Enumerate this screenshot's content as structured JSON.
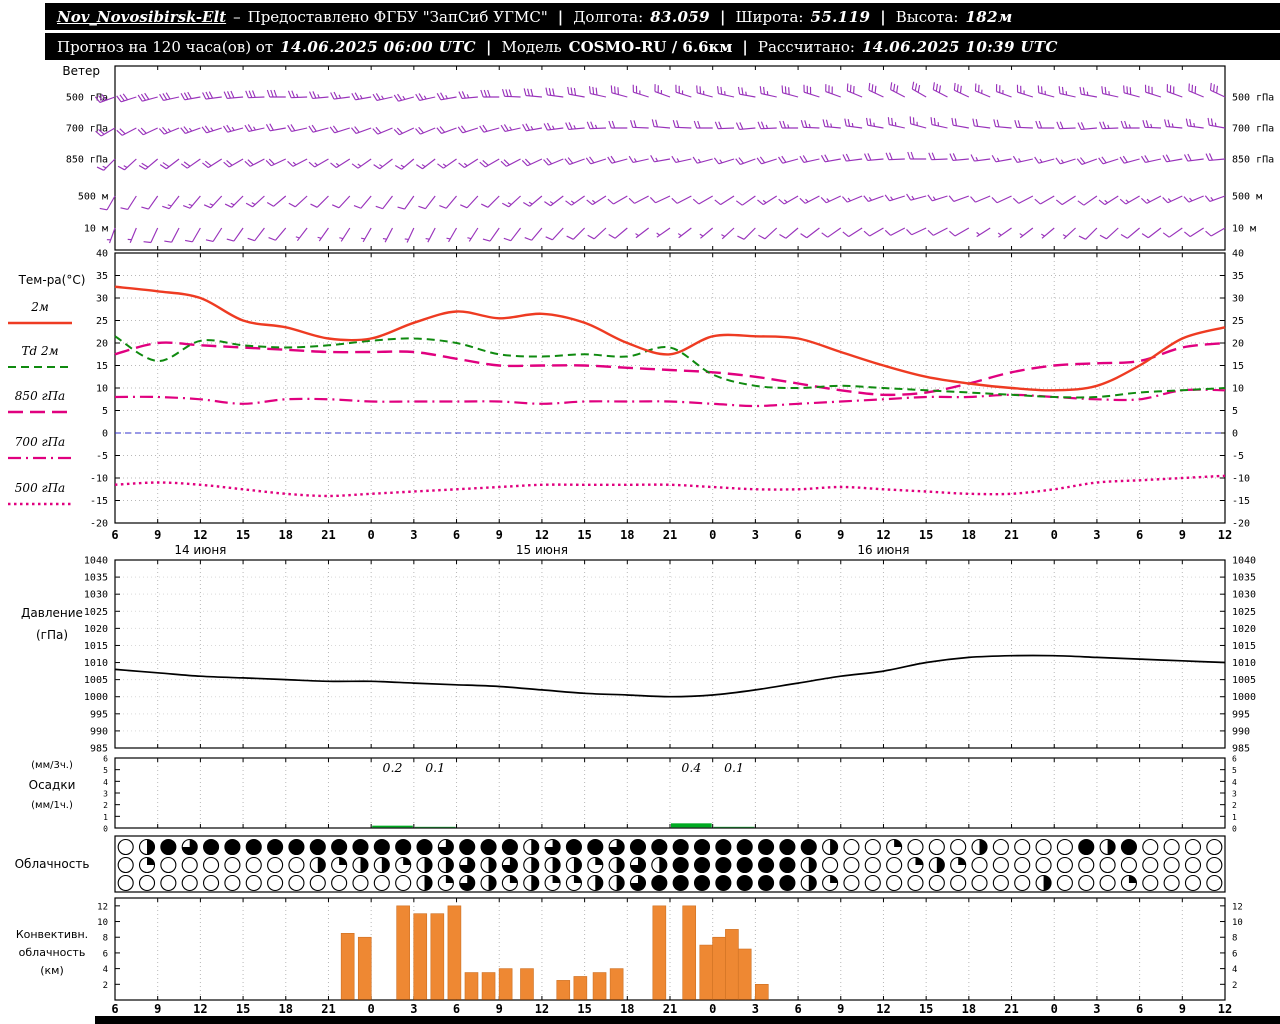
{
  "header": {
    "sep": "|",
    "dash": "–",
    "station": "Nov_Novosibirsk-Elt",
    "provider": "Предоставлено ФГБУ \"ЗапСиб УГМС\"",
    "lon_label": "Долгота:",
    "lon_value": "83.059",
    "lat_label": "Широта:",
    "lat_value": "55.119",
    "alt_label": "Высота:",
    "alt_value": "182м",
    "forecast_label": "Прогноз на 120 часа(ов) от",
    "forecast_time": "14.06.2025 06:00 UTC",
    "model_label": "Модель",
    "model_value": "COSMO-RU / 6.6км",
    "calc_label": "Рассчитано:",
    "calc_value": "14.06.2025 10:39 UTC"
  },
  "chart_data": {
    "type": "meteogram",
    "grid_color": "#b8b8b8",
    "frame_color": "#000000",
    "x": {
      "hour_labels": [
        "6",
        "9",
        "12",
        "15",
        "18",
        "21",
        "0",
        "3",
        "6",
        "9",
        "12",
        "15",
        "18",
        "21",
        "0",
        "3",
        "6",
        "9",
        "12",
        "15",
        "18",
        "21",
        "0",
        "3",
        "6",
        "9",
        "12"
      ],
      "date_labels": [
        {
          "label": "14 июня",
          "tick": 2
        },
        {
          "label": "15 июня",
          "tick": 10
        },
        {
          "label": "16 июня",
          "tick": 18
        }
      ]
    },
    "wind": {
      "panel_label": "Ветер",
      "color": "#9933bb",
      "levels": [
        {
          "label": "500 гПа",
          "dirs": [
            250,
            255,
            260,
            265,
            270,
            265,
            260,
            255,
            260,
            270,
            275,
            280,
            285,
            290,
            285,
            280,
            285,
            290,
            295,
            300,
            295,
            290,
            285,
            280,
            285,
            290,
            295
          ],
          "speeds": [
            14,
            15,
            15,
            16,
            14,
            13,
            12,
            12,
            13,
            14,
            15,
            15,
            14,
            13,
            12,
            13,
            14,
            15,
            16,
            15,
            14,
            13,
            12,
            13,
            14,
            15,
            16
          ]
        },
        {
          "label": "700 гПа",
          "dirs": [
            240,
            245,
            250,
            255,
            260,
            255,
            250,
            245,
            250,
            255,
            260,
            265,
            270,
            275,
            270,
            265,
            270,
            275,
            280,
            285,
            280,
            275,
            270,
            265,
            270,
            275,
            280
          ],
          "speeds": [
            10,
            11,
            12,
            12,
            11,
            10,
            9,
            9,
            10,
            11,
            12,
            12,
            11,
            10,
            10,
            11,
            12,
            12,
            13,
            12,
            11,
            10,
            10,
            11,
            12,
            12,
            13
          ]
        },
        {
          "label": "850 гПа",
          "dirs": [
            225,
            230,
            235,
            240,
            245,
            240,
            235,
            230,
            235,
            240,
            245,
            250,
            255,
            260,
            255,
            250,
            255,
            260,
            265,
            270,
            265,
            260,
            255,
            250,
            255,
            260,
            265
          ],
          "speeds": [
            8,
            9,
            10,
            10,
            9,
            8,
            7,
            7,
            8,
            9,
            10,
            10,
            9,
            8,
            8,
            9,
            10,
            10,
            11,
            10,
            9,
            8,
            8,
            9,
            10,
            10,
            11
          ]
        },
        {
          "label": "500 м",
          "dirs": [
            210,
            215,
            220,
            225,
            230,
            225,
            220,
            215,
            220,
            225,
            230,
            235,
            240,
            245,
            240,
            235,
            240,
            245,
            250,
            255,
            250,
            245,
            240,
            235,
            240,
            245,
            250
          ],
          "speeds": [
            5,
            6,
            7,
            7,
            6,
            5,
            5,
            4,
            5,
            6,
            7,
            7,
            6,
            5,
            5,
            6,
            7,
            7,
            8,
            7,
            6,
            5,
            5,
            6,
            7,
            7,
            8
          ]
        },
        {
          "label": "10 м",
          "dirs": [
            200,
            205,
            210,
            215,
            220,
            215,
            210,
            205,
            210,
            215,
            220,
            225,
            230,
            235,
            230,
            225,
            230,
            235,
            240,
            245,
            240,
            235,
            230,
            225,
            230,
            235,
            240
          ],
          "speeds": [
            3,
            4,
            4,
            5,
            4,
            3,
            3,
            2,
            3,
            4,
            4,
            5,
            4,
            3,
            3,
            4,
            4,
            5,
            5,
            4,
            4,
            3,
            3,
            4,
            4,
            5,
            5
          ]
        }
      ]
    },
    "temperature": {
      "panel_label": "Тем-ра(°C)",
      "ylim": [
        -20,
        40
      ],
      "yticks": [
        -20,
        -15,
        -10,
        -5,
        0,
        5,
        10,
        15,
        20,
        25,
        30,
        35,
        40
      ],
      "zero_line_color": "#3333cc",
      "series": [
        {
          "name": "2м",
          "color": "#ee3b22",
          "dash": "solid",
          "width": 2.4,
          "values": [
            32.5,
            31.5,
            30.0,
            25.0,
            23.5,
            21.0,
            21.0,
            24.5,
            27.0,
            25.5,
            26.5,
            24.5,
            20.0,
            17.5,
            21.5,
            21.5,
            21.0,
            18.0,
            15.0,
            12.5,
            11.0,
            10.0,
            9.5,
            10.5,
            15.0,
            21.0,
            23.5
          ]
        },
        {
          "name": "Td 2м",
          "color": "#0f8a0f",
          "dash": "dashed",
          "width": 2.0,
          "values": [
            21.5,
            16.0,
            20.5,
            19.5,
            19.0,
            19.5,
            20.5,
            21.0,
            20.0,
            17.5,
            17.0,
            17.5,
            17.0,
            19.0,
            13.0,
            10.5,
            10.0,
            10.5,
            10.0,
            9.5,
            9.0,
            8.5,
            8.0,
            8.0,
            9.0,
            9.5,
            10.0
          ]
        },
        {
          "name": "850 гПа",
          "color": "#e0007f",
          "dash": "longdash",
          "width": 2.4,
          "values": [
            17.5,
            20.0,
            19.5,
            19.0,
            18.5,
            18.0,
            18.0,
            18.0,
            16.5,
            15.0,
            15.0,
            15.0,
            14.5,
            14.0,
            13.5,
            12.5,
            11.0,
            9.5,
            8.5,
            9.0,
            11.0,
            13.5,
            15.0,
            15.5,
            16.0,
            19.0,
            20.0
          ]
        },
        {
          "name": "700 гПа",
          "color": "#e0007f",
          "dash": "dashdot",
          "width": 2.2,
          "values": [
            8.0,
            8.0,
            7.5,
            6.5,
            7.5,
            7.5,
            7.0,
            7.0,
            7.0,
            7.0,
            6.5,
            7.0,
            7.0,
            7.0,
            6.5,
            6.0,
            6.5,
            7.0,
            7.5,
            8.0,
            8.0,
            8.5,
            8.0,
            7.5,
            7.5,
            9.5,
            9.5
          ]
        },
        {
          "name": "500 гПа",
          "color": "#e0007f",
          "dash": "dotted",
          "width": 2.4,
          "values": [
            -11.5,
            -11.0,
            -11.5,
            -12.5,
            -13.5,
            -14.0,
            -13.5,
            -13.0,
            -12.5,
            -12.0,
            -11.5,
            -11.5,
            -11.5,
            -11.5,
            -12.0,
            -12.5,
            -12.5,
            -12.0,
            -12.5,
            -13.0,
            -13.5,
            -13.5,
            -12.5,
            -11.0,
            -10.5,
            -10.0,
            -9.5
          ]
        }
      ]
    },
    "pressure": {
      "panel_label_1": "Давление",
      "panel_label_2": "(гПа)",
      "ylim": [
        985,
        1040
      ],
      "yticks": [
        985,
        990,
        995,
        1000,
        1005,
        1010,
        1015,
        1020,
        1025,
        1030,
        1035,
        1040
      ],
      "color": "#000000",
      "values": [
        1008,
        1007,
        1006,
        1005.5,
        1005,
        1004.5,
        1004.5,
        1004,
        1003.5,
        1003,
        1002,
        1001,
        1000.5,
        1000,
        1000.5,
        1002,
        1004,
        1006,
        1007.5,
        1010,
        1011.5,
        1012,
        1012,
        1011.5,
        1011,
        1010.5,
        1010
      ]
    },
    "precip": {
      "label_top": "(мм/3ч.)",
      "label_mid": "Осадки",
      "label_bot": "(мм/1ч.)",
      "ylim": [
        0,
        6
      ],
      "yticks": [
        0,
        1,
        2,
        3,
        4,
        5,
        6
      ],
      "color": "#00aa22",
      "bars": [
        {
          "tick": 6,
          "value": 0.2,
          "label": "0.2"
        },
        {
          "tick": 7,
          "value": 0.1,
          "label": "0.1"
        },
        {
          "tick": 13,
          "value": 0.4,
          "label": "0.4"
        },
        {
          "tick": 14,
          "value": 0.1,
          "label": "0.1"
        }
      ]
    },
    "cloud": {
      "panel_label": "Облачность",
      "quarters_legend": "0=clear,4=overcast",
      "rows": [
        [
          0,
          2,
          4,
          3,
          4,
          4,
          4,
          4,
          4,
          4,
          4,
          4,
          4,
          4,
          4,
          3,
          4,
          4,
          4,
          2,
          3,
          4,
          4,
          3,
          4,
          4,
          4,
          4,
          4,
          4,
          4,
          4,
          4,
          2,
          0,
          0,
          1,
          0,
          0,
          0,
          2,
          0,
          0,
          0,
          0,
          4,
          2,
          4,
          0,
          0,
          0,
          0
        ],
        [
          0,
          1,
          0,
          0,
          0,
          0,
          0,
          0,
          0,
          2,
          1,
          2,
          2,
          1,
          2,
          2,
          3,
          2,
          3,
          2,
          2,
          2,
          1,
          2,
          3,
          2,
          4,
          4,
          4,
          4,
          4,
          4,
          2,
          0,
          0,
          0,
          0,
          1,
          2,
          1,
          0,
          0,
          0,
          0,
          0,
          0,
          0,
          0,
          0,
          0,
          0,
          0
        ],
        [
          0,
          0,
          0,
          0,
          0,
          0,
          0,
          0,
          0,
          0,
          0,
          0,
          0,
          0,
          2,
          1,
          3,
          2,
          1,
          2,
          1,
          1,
          2,
          2,
          3,
          4,
          4,
          4,
          4,
          4,
          4,
          4,
          2,
          1,
          0,
          0,
          0,
          0,
          0,
          0,
          0,
          0,
          0,
          2,
          0,
          0,
          0,
          1,
          0,
          0,
          0,
          0
        ]
      ]
    },
    "convective": {
      "label_1": "Конвективн.",
      "label_2": "облачность",
      "label_3": "(км)",
      "ylim": [
        0,
        13
      ],
      "yticks": [
        2,
        4,
        6,
        8,
        10,
        12
      ],
      "color": "#ee8833",
      "bars": [
        {
          "x": 5.45,
          "h": 8.5
        },
        {
          "x": 5.85,
          "h": 8
        },
        {
          "x": 6.75,
          "h": 12
        },
        {
          "x": 7.15,
          "h": 11
        },
        {
          "x": 7.55,
          "h": 11
        },
        {
          "x": 7.95,
          "h": 12
        },
        {
          "x": 8.35,
          "h": 3.5
        },
        {
          "x": 8.75,
          "h": 3.5
        },
        {
          "x": 9.15,
          "h": 4
        },
        {
          "x": 9.65,
          "h": 4
        },
        {
          "x": 10.5,
          "h": 2.5
        },
        {
          "x": 10.9,
          "h": 3
        },
        {
          "x": 11.35,
          "h": 3.5
        },
        {
          "x": 11.75,
          "h": 4
        },
        {
          "x": 12.75,
          "h": 12
        },
        {
          "x": 13.45,
          "h": 12
        },
        {
          "x": 13.85,
          "h": 7
        },
        {
          "x": 14.15,
          "h": 8
        },
        {
          "x": 14.45,
          "h": 9
        },
        {
          "x": 14.75,
          "h": 6.5
        },
        {
          "x": 15.15,
          "h": 2
        }
      ]
    }
  }
}
